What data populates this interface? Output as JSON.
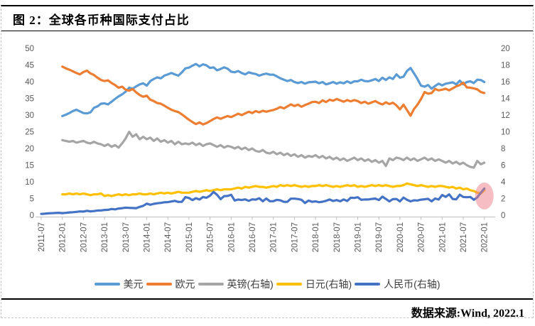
{
  "figure": {
    "title": "图 2：全球各币种国际支付占比",
    "source": "数据来源:Wind, 2022.1"
  },
  "chart_data": {
    "type": "line",
    "title": "全球各币种国际支付占比",
    "x_axis": {
      "start_month": "2011-07",
      "end_month": "2022-01",
      "frequency": "monthly",
      "tick_labels": [
        "2011-07",
        "2012-01",
        "2012-07",
        "2013-01",
        "2013-07",
        "2014-01",
        "2014-07",
        "2015-01",
        "2015-07",
        "2016-01",
        "2016-07",
        "2017-01",
        "2017-07",
        "2018-01",
        "2018-07",
        "2019-01",
        "2019-07",
        "2020-01",
        "2020-07",
        "2021-01",
        "2021-07",
        "2022-01"
      ]
    },
    "left_axis": {
      "min": 0,
      "max": 50,
      "tick_step": 5,
      "tick_labels": [
        "0",
        "5",
        "10",
        "15",
        "20",
        "25",
        "30",
        "35",
        "40",
        "45",
        "50"
      ]
    },
    "right_axis": {
      "min": 0,
      "max": 20,
      "tick_step": 2,
      "tick_labels": [
        "0",
        "2",
        "4",
        "6",
        "8",
        "10",
        "12",
        "14",
        "16",
        "18",
        "20"
      ]
    },
    "grid": false,
    "legend_position": "bottom",
    "series": [
      {
        "key": "usd",
        "name": "美元",
        "axis": "left",
        "color": "#5B9BD5",
        "values": [
          null,
          null,
          null,
          null,
          null,
          null,
          29.7,
          30.1,
          30.6,
          31.2,
          31.6,
          31.1,
          30.6,
          30.5,
          30.8,
          32.2,
          32.6,
          33.4,
          33.5,
          33.2,
          34.0,
          34.8,
          35.6,
          36.2,
          37.0,
          38.2,
          37.9,
          38.6,
          39.2,
          39.5,
          38.8,
          40.2,
          40.8,
          41.3,
          41.0,
          41.8,
          42.2,
          42.6,
          42.2,
          41.8,
          42.8,
          44.0,
          44.2,
          44.8,
          45.3,
          44.6,
          45.2,
          44.9,
          44.1,
          44.3,
          43.4,
          43.8,
          44.3,
          43.9,
          43.0,
          42.8,
          43.2,
          42.6,
          42.2,
          42.8,
          42.5,
          42.3,
          41.8,
          42.2,
          42.4,
          42.1,
          42.1,
          41.6,
          41.0,
          40.6,
          40.2,
          40.5,
          39.9,
          39.6,
          39.9,
          39.4,
          39.8,
          39.9,
          40.0,
          39.5,
          39.9,
          39.2,
          39.5,
          39.9,
          39.4,
          39.8,
          39.5,
          40.1,
          39.6,
          40.1,
          40.1,
          40.6,
          40.2,
          40.1,
          40.4,
          40.8,
          40.2,
          41.2,
          40.5,
          41.3,
          40.8,
          42.2,
          41.2,
          41.5,
          43.2,
          44.1,
          42.5,
          40.8,
          38.8,
          38.5,
          39.0,
          37.9,
          38.7,
          39.4,
          38.9,
          39.4,
          39.6,
          39.8,
          39.2,
          40.3,
          39.2,
          39.9,
          40.1,
          39.6,
          40.6,
          40.5,
          39.9
        ]
      },
      {
        "key": "eur",
        "name": "欧元",
        "axis": "left",
        "color": "#ED7D31",
        "values": [
          null,
          null,
          null,
          null,
          null,
          null,
          44.5,
          44.0,
          43.6,
          43.1,
          42.6,
          42.2,
          42.9,
          43.3,
          42.5,
          42.0,
          41.2,
          40.5,
          40.2,
          40.4,
          39.6,
          39.0,
          38.2,
          38.5,
          37.6,
          37.3,
          37.8,
          36.8,
          36.0,
          35.5,
          35.8,
          34.6,
          34.2,
          33.6,
          33.4,
          32.8,
          32.2,
          31.6,
          31.2,
          30.9,
          30.2,
          29.4,
          28.6,
          27.9,
          27.3,
          27.8,
          27.2,
          27.6,
          28.2,
          28.8,
          29.3,
          28.9,
          29.3,
          29.7,
          29.4,
          29.9,
          30.4,
          30.0,
          30.5,
          31.0,
          30.6,
          31.2,
          30.8,
          31.3,
          31.0,
          31.3,
          31.5,
          31.9,
          32.4,
          32.0,
          32.6,
          33.2,
          32.7,
          33.1,
          32.5,
          33.0,
          33.4,
          33.9,
          34.0,
          33.6,
          34.4,
          33.9,
          34.6,
          34.3,
          34.8,
          34.4,
          34.0,
          34.5,
          34.1,
          34.5,
          34.2,
          33.6,
          34.0,
          33.4,
          33.8,
          34.2,
          33.6,
          33.2,
          33.8,
          33.3,
          33.7,
          32.9,
          31.7,
          33.1,
          31.5,
          29.8,
          31.8,
          33.1,
          34.8,
          36.9,
          36.4,
          36.6,
          37.8,
          37.4,
          37.6,
          37.9,
          37.4,
          38.0,
          38.6,
          39.0,
          39.7,
          38.3,
          38.2,
          38.0,
          37.7,
          36.9,
          36.6
        ]
      },
      {
        "key": "gbp",
        "name": "英镑(右轴)",
        "axis": "right",
        "color": "#A5A5A5",
        "values": [
          null,
          null,
          null,
          null,
          null,
          null,
          9.0,
          8.9,
          8.8,
          8.9,
          8.7,
          8.8,
          8.9,
          8.7,
          8.6,
          8.8,
          8.6,
          8.5,
          8.3,
          8.5,
          8.2,
          8.4,
          8.1,
          8.6,
          9.2,
          10.0,
          9.4,
          9.7,
          9.1,
          9.4,
          9.1,
          9.3,
          8.9,
          9.2,
          8.8,
          9.0,
          8.7,
          8.9,
          8.5,
          8.8,
          8.5,
          8.6,
          8.5,
          8.7,
          8.4,
          8.6,
          8.3,
          8.5,
          8.6,
          8.4,
          8.2,
          8.4,
          8.1,
          8.3,
          8.2,
          8.0,
          8.2,
          7.9,
          8.1,
          7.8,
          8.0,
          7.7,
          7.6,
          7.8,
          7.5,
          7.4,
          7.6,
          7.3,
          7.5,
          7.2,
          7.4,
          7.1,
          7.3,
          7.0,
          7.2,
          6.9,
          7.1,
          7.0,
          7.2,
          6.9,
          7.1,
          6.8,
          7.0,
          6.7,
          6.9,
          6.6,
          6.8,
          6.5,
          6.7,
          6.9,
          6.6,
          6.8,
          6.5,
          6.7,
          6.4,
          6.6,
          6.3,
          6.5,
          5.9,
          6.8,
          6.6,
          6.9,
          6.8,
          6.6,
          6.9,
          6.6,
          6.8,
          6.5,
          6.7,
          6.9,
          6.6,
          6.8,
          6.5,
          6.7,
          6.5,
          6.3,
          6.5,
          6.2,
          6.4,
          6.1,
          6.3,
          6.0,
          5.8,
          5.7,
          6.5,
          6.1,
          6.3
        ]
      },
      {
        "key": "jpy",
        "name": "日元(右轴)",
        "axis": "right",
        "color": "#FFC000",
        "values": [
          null,
          null,
          null,
          null,
          null,
          null,
          2.5,
          2.5,
          2.6,
          2.5,
          2.6,
          2.5,
          2.6,
          2.5,
          2.4,
          2.5,
          2.5,
          2.6,
          2.3,
          2.4,
          2.3,
          2.4,
          2.5,
          2.4,
          2.5,
          2.4,
          2.5,
          2.5,
          2.6,
          2.5,
          2.5,
          2.6,
          2.5,
          2.6,
          2.7,
          2.6,
          2.7,
          2.6,
          2.7,
          2.8,
          2.7,
          2.7,
          2.7,
          2.8,
          2.9,
          2.8,
          2.9,
          3.0,
          2.9,
          3.0,
          3.1,
          3.0,
          3.1,
          3.1,
          3.1,
          3.2,
          3.3,
          3.2,
          3.4,
          3.3,
          3.4,
          3.5,
          3.4,
          3.4,
          3.3,
          3.4,
          3.5,
          3.4,
          3.6,
          3.5,
          3.6,
          3.5,
          3.6,
          3.5,
          3.4,
          3.5,
          3.4,
          3.5,
          3.5,
          3.6,
          3.5,
          3.6,
          3.5,
          3.4,
          3.5,
          3.4,
          3.5,
          3.6,
          3.5,
          3.6,
          3.4,
          3.5,
          3.4,
          3.5,
          3.6,
          3.5,
          3.6,
          3.5,
          3.6,
          3.5,
          3.4,
          3.5,
          3.5,
          3.6,
          3.8,
          3.7,
          3.6,
          3.5,
          3.6,
          3.5,
          3.4,
          3.5,
          3.4,
          3.5,
          3.5,
          3.4,
          3.3,
          3.4,
          3.2,
          3.3,
          3.1,
          3.2,
          3.0,
          2.9,
          2.7,
          2.6,
          3.0
        ]
      },
      {
        "key": "cny",
        "name": "人民币(右轴)",
        "axis": "right",
        "color": "#4472C4",
        "values": [
          0.15,
          0.18,
          0.22,
          0.24,
          0.26,
          0.29,
          0.25,
          0.28,
          0.33,
          0.36,
          0.4,
          0.45,
          0.43,
          0.53,
          0.46,
          0.49,
          0.56,
          0.57,
          0.63,
          0.65,
          0.74,
          0.7,
          0.8,
          0.84,
          0.9,
          0.88,
          0.86,
          0.84,
          1.0,
          1.12,
          1.39,
          1.25,
          1.36,
          1.43,
          1.47,
          1.55,
          1.57,
          1.64,
          1.72,
          1.59,
          1.61,
          2.17,
          2.06,
          1.81,
          2.03,
          1.88,
          2.18,
          2.09,
          2.34,
          2.79,
          2.45,
          1.92,
          2.28,
          2.31,
          2.45,
          1.76,
          1.88,
          1.82,
          1.9,
          1.72,
          1.9,
          1.86,
          2.03,
          1.67,
          2.0,
          1.68,
          1.68,
          1.84,
          1.78,
          1.6,
          1.61,
          1.98,
          1.98,
          1.94,
          1.85,
          1.46,
          1.75,
          1.61,
          1.66,
          1.56,
          1.62,
          1.72,
          1.88,
          1.7,
          1.81,
          1.67,
          1.89,
          1.7,
          2.09,
          2.07,
          2.15,
          1.85,
          1.89,
          1.88,
          1.95,
          1.99,
          1.81,
          2.22,
          1.95,
          1.65,
          1.93,
          1.94,
          1.65,
          2.11,
          1.85,
          1.66,
          1.79,
          1.76,
          1.86,
          1.91,
          1.97,
          1.66,
          2.0,
          1.88,
          2.42,
          2.2,
          2.49,
          1.95,
          1.9,
          2.46,
          2.19,
          2.15,
          2.19,
          1.85,
          2.14,
          2.7,
          3.2
        ]
      }
    ],
    "annotation": {
      "type": "ellipse-highlight",
      "month": "2022-01",
      "axis": "right",
      "center_value": 2.3,
      "color": "rgba(237,125,134,0.5)"
    }
  }
}
